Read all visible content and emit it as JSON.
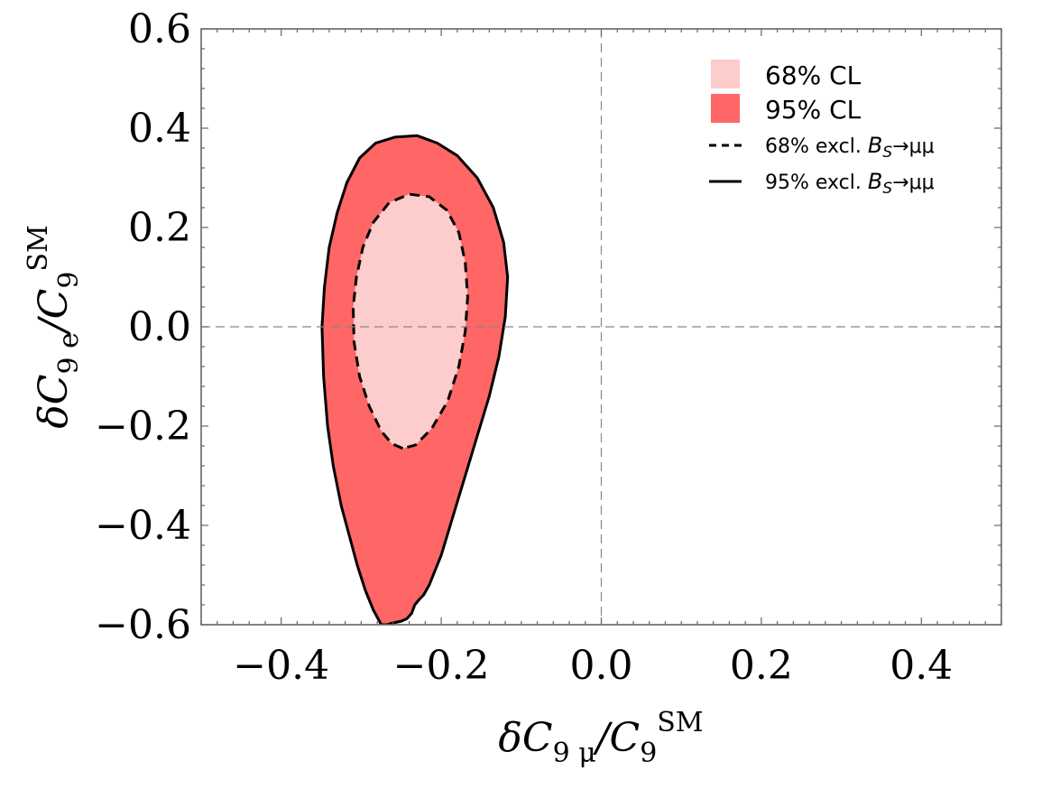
{
  "chart_data": {
    "type": "contour",
    "title": "",
    "xlabel": "δC9 μ/C9^SM",
    "ylabel": "δC9 e/C9^SM",
    "xlabel_parts": {
      "main": "δC",
      "sub1": "9 μ",
      "slash": "/C",
      "sub2": "9",
      "sup": "SM"
    },
    "ylabel_parts": {
      "main": "δC",
      "sub1": "9 e",
      "slash": "/C",
      "sub2": "9",
      "sup": "SM"
    },
    "xlim": [
      -0.5,
      0.5
    ],
    "ylim": [
      -0.6,
      0.6
    ],
    "xticks": [
      -0.4,
      -0.2,
      0.0,
      0.2,
      0.4
    ],
    "xtick_labels": [
      "−0.4",
      "−0.2",
      "0.0",
      "0.2",
      "0.4"
    ],
    "yticks": [
      -0.6,
      -0.4,
      -0.2,
      0.0,
      0.2,
      0.4,
      0.6
    ],
    "ytick_labels": [
      "−0.6",
      "−0.4",
      "−0.2",
      "0.0",
      "0.2",
      "0.4",
      "0.6"
    ],
    "reference_lines": {
      "x": 0.0,
      "y": 0.0
    },
    "colors": {
      "cl68": "#fdcccc",
      "cl95": "#ff6666",
      "outline": "#000000",
      "reference": "#888888",
      "frame": "#666666"
    },
    "series": [
      {
        "name": "95% CL",
        "kind": "filled",
        "points": [
          [
            -0.275,
            -0.6
          ],
          [
            -0.285,
            -0.57
          ],
          [
            -0.295,
            -0.53
          ],
          [
            -0.305,
            -0.48
          ],
          [
            -0.315,
            -0.42
          ],
          [
            -0.325,
            -0.36
          ],
          [
            -0.335,
            -0.28
          ],
          [
            -0.342,
            -0.2
          ],
          [
            -0.347,
            -0.1
          ],
          [
            -0.349,
            0.0
          ],
          [
            -0.346,
            0.08
          ],
          [
            -0.34,
            0.16
          ],
          [
            -0.33,
            0.23
          ],
          [
            -0.318,
            0.29
          ],
          [
            -0.302,
            0.34
          ],
          [
            -0.282,
            0.37
          ],
          [
            -0.258,
            0.382
          ],
          [
            -0.23,
            0.385
          ],
          [
            -0.205,
            0.37
          ],
          [
            -0.18,
            0.345
          ],
          [
            -0.155,
            0.3
          ],
          [
            -0.135,
            0.24
          ],
          [
            -0.122,
            0.17
          ],
          [
            -0.117,
            0.1
          ],
          [
            -0.12,
            0.02
          ],
          [
            -0.128,
            -0.06
          ],
          [
            -0.14,
            -0.14
          ],
          [
            -0.155,
            -0.22
          ],
          [
            -0.17,
            -0.3
          ],
          [
            -0.185,
            -0.38
          ],
          [
            -0.2,
            -0.46
          ],
          [
            -0.21,
            -0.5
          ],
          [
            -0.215,
            -0.52
          ],
          [
            -0.222,
            -0.54
          ],
          [
            -0.228,
            -0.55
          ],
          [
            -0.233,
            -0.56
          ],
          [
            -0.237,
            -0.577
          ],
          [
            -0.243,
            -0.588
          ],
          [
            -0.25,
            -0.593
          ],
          [
            -0.262,
            -0.597
          ],
          [
            -0.268,
            -0.6
          ]
        ]
      },
      {
        "name": "68% CL",
        "kind": "filled",
        "points": [
          [
            -0.248,
            -0.245
          ],
          [
            -0.262,
            -0.235
          ],
          [
            -0.275,
            -0.21
          ],
          [
            -0.29,
            -0.16
          ],
          [
            -0.302,
            -0.1
          ],
          [
            -0.309,
            -0.03
          ],
          [
            -0.31,
            0.04
          ],
          [
            -0.306,
            0.1
          ],
          [
            -0.298,
            0.16
          ],
          [
            -0.285,
            0.21
          ],
          [
            -0.265,
            0.25
          ],
          [
            -0.24,
            0.267
          ],
          [
            -0.215,
            0.262
          ],
          [
            -0.193,
            0.235
          ],
          [
            -0.178,
            0.19
          ],
          [
            -0.17,
            0.13
          ],
          [
            -0.167,
            0.06
          ],
          [
            -0.17,
            -0.01
          ],
          [
            -0.178,
            -0.08
          ],
          [
            -0.192,
            -0.15
          ],
          [
            -0.212,
            -0.205
          ],
          [
            -0.232,
            -0.238
          ]
        ]
      }
    ],
    "legend": {
      "position": "top-right",
      "entries": [
        {
          "label": "68% CL",
          "style": "patch",
          "color": "#fdcccc"
        },
        {
          "label": "95% CL",
          "style": "patch",
          "color": "#ff6666"
        },
        {
          "label": "68% excl. ",
          "label_math": "B",
          "label_sub": "S",
          "label_tail": "→μμ",
          "style": "dashed-line"
        },
        {
          "label": "95% excl. ",
          "label_math": "B",
          "label_sub": "S",
          "label_tail": "→μμ",
          "style": "solid-line"
        }
      ]
    }
  }
}
